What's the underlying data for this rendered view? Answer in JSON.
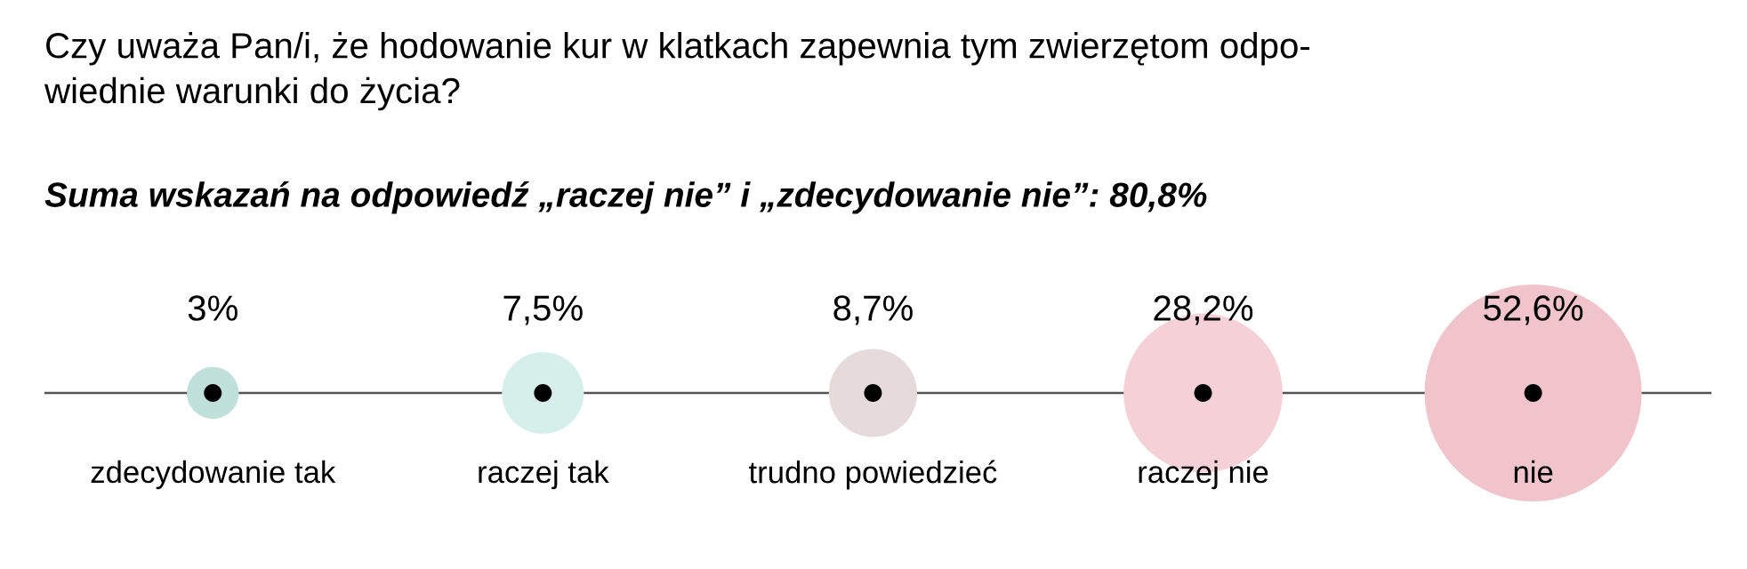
{
  "chart_data": {
    "type": "other",
    "title": "Czy uważa Pan/i, że hodowanie kur w klatkach zapewnia tym zwierzętom odpo-\nwiednie warunki do życia?",
    "subtitle": "Suma wskazań na odpowiedź „raczej nie” i „zdecydowanie nie”: 80,8%",
    "categories": [
      "zdecydowanie tak",
      "raczej tak",
      "trudno powiedzieć",
      "raczej nie",
      "nie"
    ],
    "values": [
      3,
      7.5,
      8.7,
      28.2,
      52.6
    ],
    "value_labels": [
      "3%",
      "7,5%",
      "8,7%",
      "28,2%",
      "52,6%"
    ],
    "colors": [
      "#bfe0db",
      "#d6efea",
      "#e6dadb",
      "#f6d0d7",
      "#f1c3cb"
    ]
  }
}
